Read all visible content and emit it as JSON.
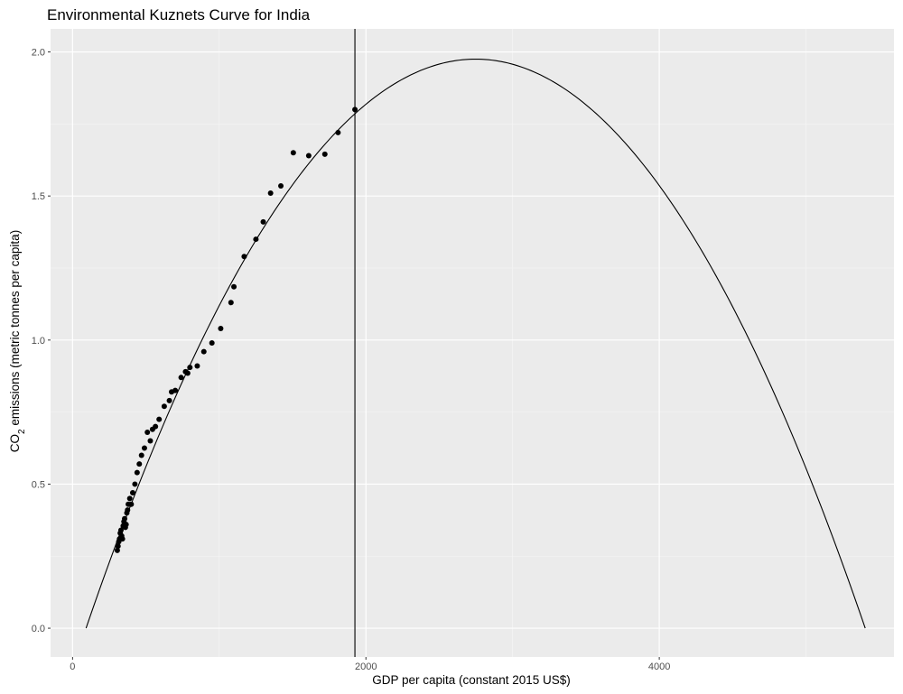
{
  "chart_data": {
    "type": "scatter",
    "title": "Environmental Kuznets Curve for India",
    "xlabel": "GDP per capita (constant 2015 US$)",
    "ylabel": {
      "prefix": "CO",
      "subscript": "2",
      "suffix": " emissions (metric tonnes per capita)"
    },
    "xlim": [
      -150,
      5600
    ],
    "ylim": [
      -0.1,
      2.08
    ],
    "x_ticks": [
      0,
      2000,
      4000
    ],
    "x_tick_labels": [
      "0",
      "2000",
      "4000"
    ],
    "y_ticks": [
      0.0,
      0.5,
      1.0,
      1.5,
      2.0
    ],
    "y_tick_labels": [
      "0.0",
      "0.5",
      "1.0",
      "1.5",
      "2.0"
    ],
    "grid": true,
    "vline_x": 1925,
    "fitted_curve": {
      "type": "quadratic",
      "x_range": [
        92,
        5404
      ],
      "peak_x": 2748,
      "peak_y": 1.975,
      "zero_crossings": [
        92,
        5404
      ]
    },
    "points": [
      {
        "x": 305,
        "y": 0.27
      },
      {
        "x": 310,
        "y": 0.285
      },
      {
        "x": 315,
        "y": 0.3
      },
      {
        "x": 320,
        "y": 0.31
      },
      {
        "x": 325,
        "y": 0.33
      },
      {
        "x": 330,
        "y": 0.34
      },
      {
        "x": 335,
        "y": 0.32
      },
      {
        "x": 340,
        "y": 0.31
      },
      {
        "x": 345,
        "y": 0.355
      },
      {
        "x": 350,
        "y": 0.37
      },
      {
        "x": 355,
        "y": 0.38
      },
      {
        "x": 360,
        "y": 0.35
      },
      {
        "x": 365,
        "y": 0.36
      },
      {
        "x": 370,
        "y": 0.4
      },
      {
        "x": 375,
        "y": 0.41
      },
      {
        "x": 380,
        "y": 0.43
      },
      {
        "x": 390,
        "y": 0.45
      },
      {
        "x": 400,
        "y": 0.43
      },
      {
        "x": 410,
        "y": 0.47
      },
      {
        "x": 425,
        "y": 0.5
      },
      {
        "x": 440,
        "y": 0.54
      },
      {
        "x": 455,
        "y": 0.57
      },
      {
        "x": 470,
        "y": 0.6
      },
      {
        "x": 490,
        "y": 0.625
      },
      {
        "x": 510,
        "y": 0.68
      },
      {
        "x": 530,
        "y": 0.65
      },
      {
        "x": 545,
        "y": 0.69
      },
      {
        "x": 565,
        "y": 0.7
      },
      {
        "x": 590,
        "y": 0.725
      },
      {
        "x": 625,
        "y": 0.77
      },
      {
        "x": 660,
        "y": 0.79
      },
      {
        "x": 675,
        "y": 0.82
      },
      {
        "x": 700,
        "y": 0.825
      },
      {
        "x": 740,
        "y": 0.87
      },
      {
        "x": 770,
        "y": 0.89
      },
      {
        "x": 785,
        "y": 0.885
      },
      {
        "x": 800,
        "y": 0.905
      },
      {
        "x": 850,
        "y": 0.91
      },
      {
        "x": 895,
        "y": 0.96
      },
      {
        "x": 950,
        "y": 0.99
      },
      {
        "x": 1010,
        "y": 1.04
      },
      {
        "x": 1080,
        "y": 1.13
      },
      {
        "x": 1100,
        "y": 1.185
      },
      {
        "x": 1170,
        "y": 1.29
      },
      {
        "x": 1250,
        "y": 1.35
      },
      {
        "x": 1300,
        "y": 1.41
      },
      {
        "x": 1350,
        "y": 1.51
      },
      {
        "x": 1420,
        "y": 1.535
      },
      {
        "x": 1505,
        "y": 1.65
      },
      {
        "x": 1610,
        "y": 1.64
      },
      {
        "x": 1720,
        "y": 1.645
      },
      {
        "x": 1810,
        "y": 1.72
      },
      {
        "x": 1925,
        "y": 1.8
      }
    ]
  }
}
